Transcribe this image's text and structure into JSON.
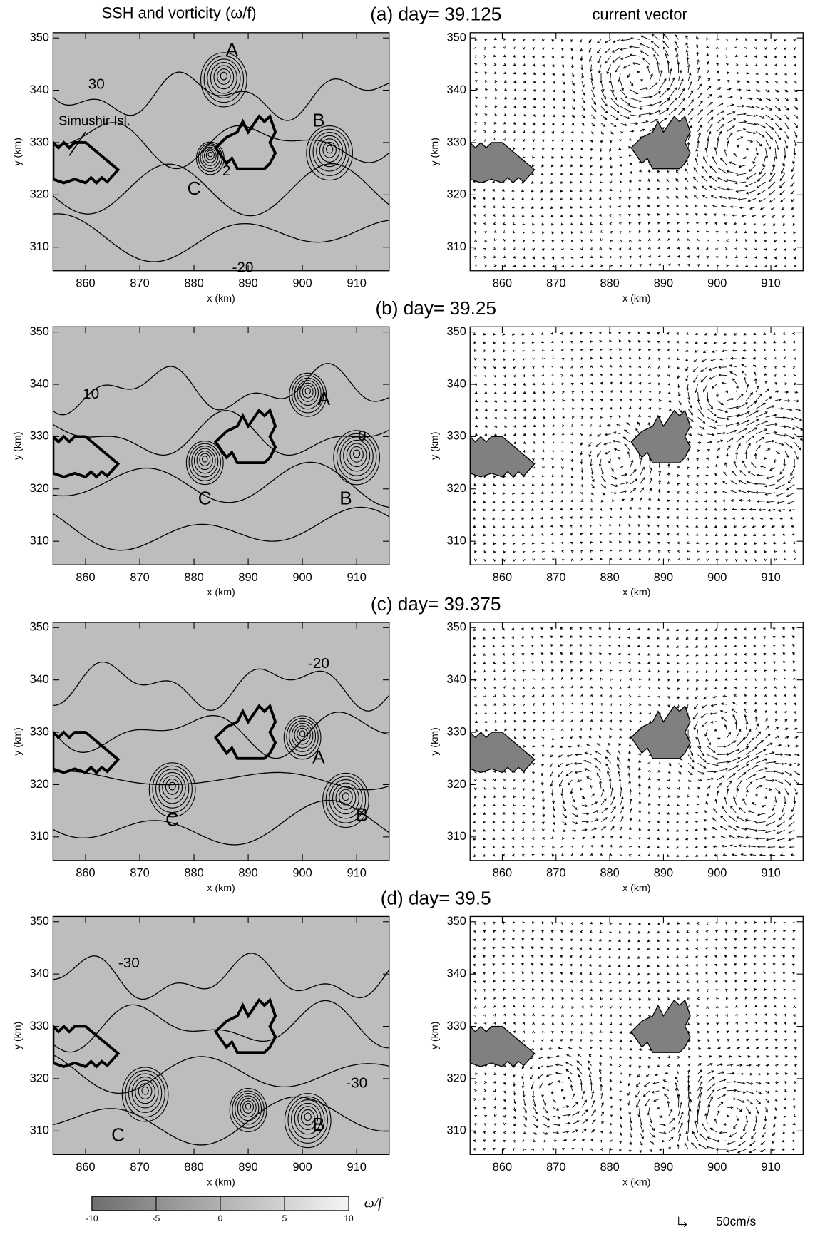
{
  "header": {
    "left_title": "SSH and vorticity (ω/f)",
    "right_title": "current vector"
  },
  "axes": {
    "xlabel": "x (km)",
    "ylabel": "y (km)",
    "xlim": [
      854,
      916
    ],
    "ylim": [
      305.5,
      351
    ],
    "xticks": [
      860,
      870,
      880,
      890,
      900,
      910
    ],
    "yticks": [
      310,
      320,
      330,
      340,
      350
    ]
  },
  "panels": [
    {
      "title": "(a) day= 39.125",
      "eddy_labels": [
        "A",
        "B",
        "C"
      ],
      "contour_labels": [
        "30",
        "2",
        "-20"
      ],
      "island_label": "Simushir Isl."
    },
    {
      "title": "(b) day= 39.25",
      "eddy_labels": [
        "A",
        "C",
        "B"
      ],
      "contour_labels": [
        "10",
        "0"
      ]
    },
    {
      "title": "(c) day= 39.375",
      "eddy_labels": [
        "A",
        "C",
        "B"
      ],
      "contour_labels": [
        "-20"
      ]
    },
    {
      "title": "(d) day= 39.5",
      "eddy_labels": [
        "C",
        "B"
      ],
      "contour_labels": [
        "-30",
        "-30"
      ]
    }
  ],
  "colorbar": {
    "label": "ω/f",
    "lim": [
      -10,
      10
    ],
    "ticks": [
      -10,
      -5,
      0,
      5,
      10
    ]
  },
  "vector_scale": {
    "label": "50cm/s"
  }
}
